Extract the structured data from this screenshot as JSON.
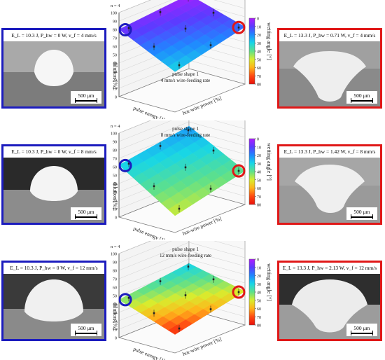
{
  "rows": [
    {
      "left_caption": "E_L = 10.3 J, P_hw = 0 W, v_f = 4 mm/s",
      "right_caption": "E_L = 13.3 J, P_hw = 0.71 W, v_f = 4 mm/s",
      "scale_label": "500 µm"
    },
    {
      "left_caption": "E_L = 10.3 J, P_hw = 0 W, v_f = 8 mm/s",
      "right_caption": "E_L = 13.3 J, P_hw = 1.42 W, v_f = 8 mm/s",
      "scale_label": "500 µm"
    },
    {
      "left_caption": "E_L = 10.3 J, P_hw = 0 W, v_f = 12 mm/s",
      "right_caption": "E_L = 13.3 J, P_hw = 2.13 W, v_f = 12 mm/s",
      "scale_label": "500 µm"
    }
  ],
  "chart_data": [
    {
      "type": "surface",
      "n_label": "n = 4",
      "annotation": [
        "pulse shape 1",
        "4 mm/s wire-feeding rate"
      ],
      "zlabel": "dilution [%]",
      "xlabel": "pulse energy [J]",
      "ylabel": "hot-wire power [%]",
      "zlim": [
        0,
        100
      ],
      "zticks": [
        0,
        10,
        20,
        30,
        40,
        50,
        60,
        70,
        80,
        90,
        100
      ],
      "colorbar_label": "wetting angle [°]",
      "colorbar_ticks": [
        0,
        10,
        20,
        30,
        40,
        50,
        60,
        70,
        80
      ],
      "surface_corners": {
        "low_energy_low_power": 80,
        "high_energy_low_power": 48,
        "low_energy_high_power": 88,
        "high_energy_high_power": 68
      },
      "color_range": "purple-blue (low wetting angle)"
    },
    {
      "type": "surface",
      "n_label": "n = 4",
      "annotation": [
        "pulse shape 1",
        "8 mm/s wire-feeding rate"
      ],
      "zlabel": "dilution [%]",
      "xlabel": "pulse energy [J]",
      "ylabel": "hot-wire power [%]",
      "zlim": [
        0,
        100
      ],
      "zticks": [
        0,
        10,
        20,
        30,
        40,
        50,
        60,
        70,
        80,
        90,
        100
      ],
      "colorbar_label": "wetting angle [°]",
      "colorbar_ticks": [
        0,
        10,
        20,
        30,
        40,
        50,
        60,
        70,
        80
      ],
      "surface_corners": {
        "low_energy_low_power": 62,
        "high_energy_low_power": 20,
        "low_energy_high_power": 75,
        "high_energy_high_power": 40
      },
      "color_range": "blue-cyan to yellow"
    },
    {
      "type": "surface",
      "n_label": "n = 4",
      "annotation": [
        "pulse shape 1",
        "12 mm/s wire-feeding rate"
      ],
      "zlabel": "dilution [%]",
      "xlabel": "pulse energy [J]",
      "ylabel": "hot-wire power [%]",
      "zlim": [
        0,
        100
      ],
      "zticks": [
        0,
        10,
        20,
        30,
        40,
        50,
        60,
        70,
        80,
        90,
        100
      ],
      "colorbar_label": "wetting angle [°]",
      "colorbar_ticks": [
        0,
        10,
        20,
        30,
        40,
        50,
        60,
        70,
        80
      ],
      "surface_corners": {
        "low_energy_low_power": 45,
        "high_energy_low_power": 22,
        "low_energy_high_power": 55,
        "high_energy_high_power": 40
      },
      "color_range": "cyan to orange-red"
    }
  ],
  "colors": {
    "blue_frame": "#1c1cbe",
    "red_frame": "#e01818",
    "colorbar_stops": [
      "#b01cff",
      "#5a3cff",
      "#1f88ff",
      "#18d6e6",
      "#5fe08a",
      "#d8ec2e",
      "#ffb31a",
      "#ff4a12",
      "#e8100a"
    ]
  }
}
